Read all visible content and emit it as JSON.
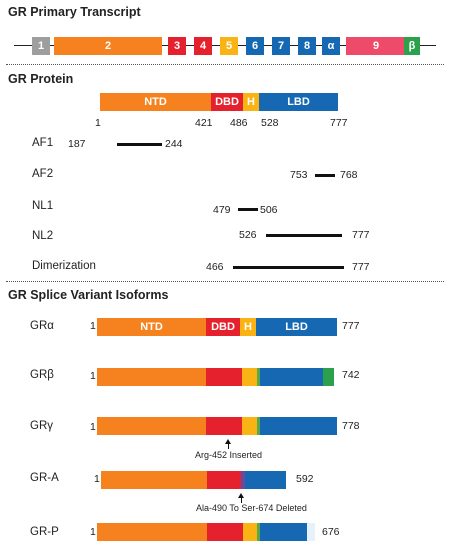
{
  "transcript": {
    "title": "GR Primary Transcript",
    "exons": [
      "1",
      "2",
      "3",
      "4",
      "5",
      "6",
      "7",
      "8",
      "α",
      "9",
      "β"
    ],
    "colors": {
      "e1": "#9e9e9e",
      "e2": "#f5821f",
      "e3": "#e4212d",
      "e5": "#f9b315",
      "e6": "#1668b3",
      "alpha": "#1668b3",
      "e9": "#ee4b6a",
      "beta": "#2ba14b"
    }
  },
  "protein": {
    "title": "GR Protein",
    "domains": [
      "NTD",
      "DBD",
      "H",
      "LBD"
    ],
    "positions": [
      "1",
      "421",
      "486",
      "528",
      "777"
    ],
    "regions": [
      {
        "label": "AF1",
        "start": "187",
        "end": "244"
      },
      {
        "label": "AF2",
        "start": "753",
        "end": "768"
      },
      {
        "label": "NL1",
        "start": "479",
        "end": "506"
      },
      {
        "label": "NL2",
        "start": "526",
        "end": "777"
      },
      {
        "label": "Dimerization",
        "start": "466",
        "end": "777"
      }
    ]
  },
  "isoforms": {
    "title": "GR Splice Variant Isoforms",
    "items": [
      {
        "name": "GRα",
        "start": "1",
        "end": "777",
        "domains": [
          "NTD",
          "DBD",
          "H",
          "LBD"
        ]
      },
      {
        "name": "GRβ",
        "start": "1",
        "end": "742"
      },
      {
        "name": "GRγ",
        "start": "1",
        "end": "778",
        "note": "Arg-452 Inserted"
      },
      {
        "name": "GR-A",
        "start": "1",
        "end": "592",
        "note": "Ala-490 To Ser-674 Deleted"
      },
      {
        "name": "GR-P",
        "start": "1",
        "end": "676"
      }
    ]
  }
}
